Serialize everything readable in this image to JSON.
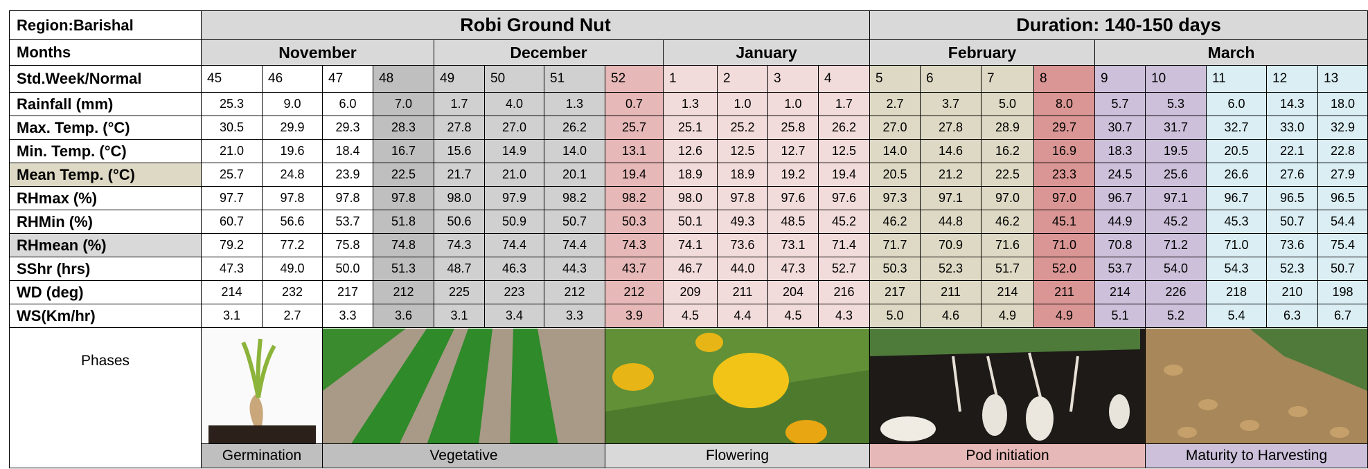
{
  "header": {
    "region": "Region:Barishal",
    "crop": "Robi Ground Nut",
    "duration": "Duration: 140-150 days"
  },
  "months": {
    "label": "Months",
    "names": [
      "November",
      "December",
      "January",
      "February",
      "March"
    ]
  },
  "weeks": {
    "label": "Std.Week/Normal",
    "values": [
      "45",
      "46",
      "47",
      "48",
      "49",
      "50",
      "51",
      "52",
      "1",
      "2",
      "3",
      "4",
      "5",
      "6",
      "7",
      "8",
      "9",
      "10",
      "11",
      "12",
      "13"
    ],
    "colors": [
      "#ffffff",
      "#ffffff",
      "#ffffff",
      "#bfbfbf",
      "#d0d0d0",
      "#d0d0d0",
      "#d0d0d0",
      "#e6b8b7",
      "#f2dcdb",
      "#f2dcdb",
      "#f2dcdb",
      "#f2dcdb",
      "#ddd9c4",
      "#ddd9c4",
      "#ddd9c4",
      "#da9694",
      "#ccc0da",
      "#ccc0da",
      "#daeef3",
      "#daeef3",
      "#daeef3"
    ]
  },
  "rows": [
    {
      "label": "Rainfall (mm)",
      "values": [
        "25.3",
        "9.0",
        "6.0",
        "7.0",
        "1.7",
        "4.0",
        "1.3",
        "0.7",
        "1.3",
        "1.0",
        "1.0",
        "1.7",
        "2.7",
        "3.7",
        "5.0",
        "8.0",
        "5.7",
        "5.3",
        "6.0",
        "14.3",
        "18.0"
      ]
    },
    {
      "label": "Max. Temp. (°C)",
      "values": [
        "30.5",
        "29.9",
        "29.3",
        "28.3",
        "27.8",
        "27.0",
        "26.2",
        "25.7",
        "25.1",
        "25.2",
        "25.8",
        "26.2",
        "27.0",
        "27.8",
        "28.9",
        "29.7",
        "30.7",
        "31.7",
        "32.7",
        "33.0",
        "32.9"
      ]
    },
    {
      "label": "Min. Temp. (°C)",
      "values": [
        "21.0",
        "19.6",
        "18.4",
        "16.7",
        "15.6",
        "14.9",
        "14.0",
        "13.1",
        "12.6",
        "12.5",
        "12.7",
        "12.5",
        "14.0",
        "14.6",
        "16.2",
        "16.9",
        "18.3",
        "19.5",
        "20.5",
        "22.1",
        "22.8"
      ]
    },
    {
      "label": "Mean Temp. (°C)",
      "color": "#ddd9c4",
      "values": [
        "25.7",
        "24.8",
        "23.9",
        "22.5",
        "21.7",
        "21.0",
        "20.1",
        "19.4",
        "18.9",
        "18.9",
        "19.2",
        "19.4",
        "20.5",
        "21.2",
        "22.5",
        "23.3",
        "24.5",
        "25.6",
        "26.6",
        "27.6",
        "27.9"
      ]
    },
    {
      "label": "RHmax (%)",
      "values": [
        "97.7",
        "97.8",
        "97.8",
        "97.8",
        "98.0",
        "97.9",
        "98.2",
        "98.2",
        "98.0",
        "97.8",
        "97.6",
        "97.6",
        "97.3",
        "97.1",
        "97.0",
        "97.0",
        "96.7",
        "97.1",
        "96.7",
        "96.5",
        "96.5"
      ]
    },
    {
      "label": "RHMin (%)",
      "values": [
        "60.7",
        "56.6",
        "53.7",
        "51.8",
        "50.6",
        "50.9",
        "50.7",
        "50.3",
        "50.1",
        "49.3",
        "48.5",
        "45.2",
        "46.2",
        "44.8",
        "46.2",
        "45.1",
        "44.9",
        "45.2",
        "45.3",
        "50.7",
        "54.4"
      ]
    },
    {
      "label": "RHmean (%)",
      "color": "#d9d9d9",
      "values": [
        "79.2",
        "77.2",
        "75.8",
        "74.8",
        "74.3",
        "74.4",
        "74.4",
        "74.3",
        "74.1",
        "73.6",
        "73.1",
        "71.4",
        "71.7",
        "70.9",
        "71.6",
        "71.0",
        "70.8",
        "71.2",
        "71.0",
        "73.6",
        "75.4"
      ]
    },
    {
      "label": "SShr (hrs)",
      "values": [
        "47.3",
        "49.0",
        "50.0",
        "51.3",
        "48.7",
        "46.3",
        "44.3",
        "43.7",
        "46.7",
        "44.0",
        "47.3",
        "52.7",
        "50.3",
        "52.3",
        "51.7",
        "52.0",
        "53.7",
        "54.0",
        "54.3",
        "52.3",
        "50.7"
      ]
    },
    {
      "label": "WD (deg)",
      "values": [
        "214",
        "232",
        "217",
        "212",
        "225",
        "223",
        "212",
        "212",
        "209",
        "211",
        "204",
        "216",
        "217",
        "211",
        "214",
        "211",
        "214",
        "226",
        "218",
        "210",
        "198"
      ]
    },
    {
      "label": "WS(Km/hr)",
      "values": [
        "3.1",
        "2.7",
        "3.3",
        "3.6",
        "3.1",
        "3.4",
        "3.3",
        "3.9",
        "4.5",
        "4.4",
        "4.5",
        "4.3",
        "5.0",
        "4.6",
        "4.9",
        "4.9",
        "5.1",
        "5.2",
        "5.4",
        "6.3",
        "6.7"
      ]
    }
  ],
  "phases": {
    "label": "Phases",
    "items": [
      {
        "name": "Germination",
        "color": "#bfbfbf"
      },
      {
        "name": "Vegetative",
        "color": "#bfbfbf"
      },
      {
        "name": "Flowering",
        "color": "#d9d9d9"
      },
      {
        "name": "Pod initiation",
        "color": "#e6b8b7"
      },
      {
        "name": "Maturity to Harvesting",
        "color": "#ccc0da"
      }
    ]
  }
}
